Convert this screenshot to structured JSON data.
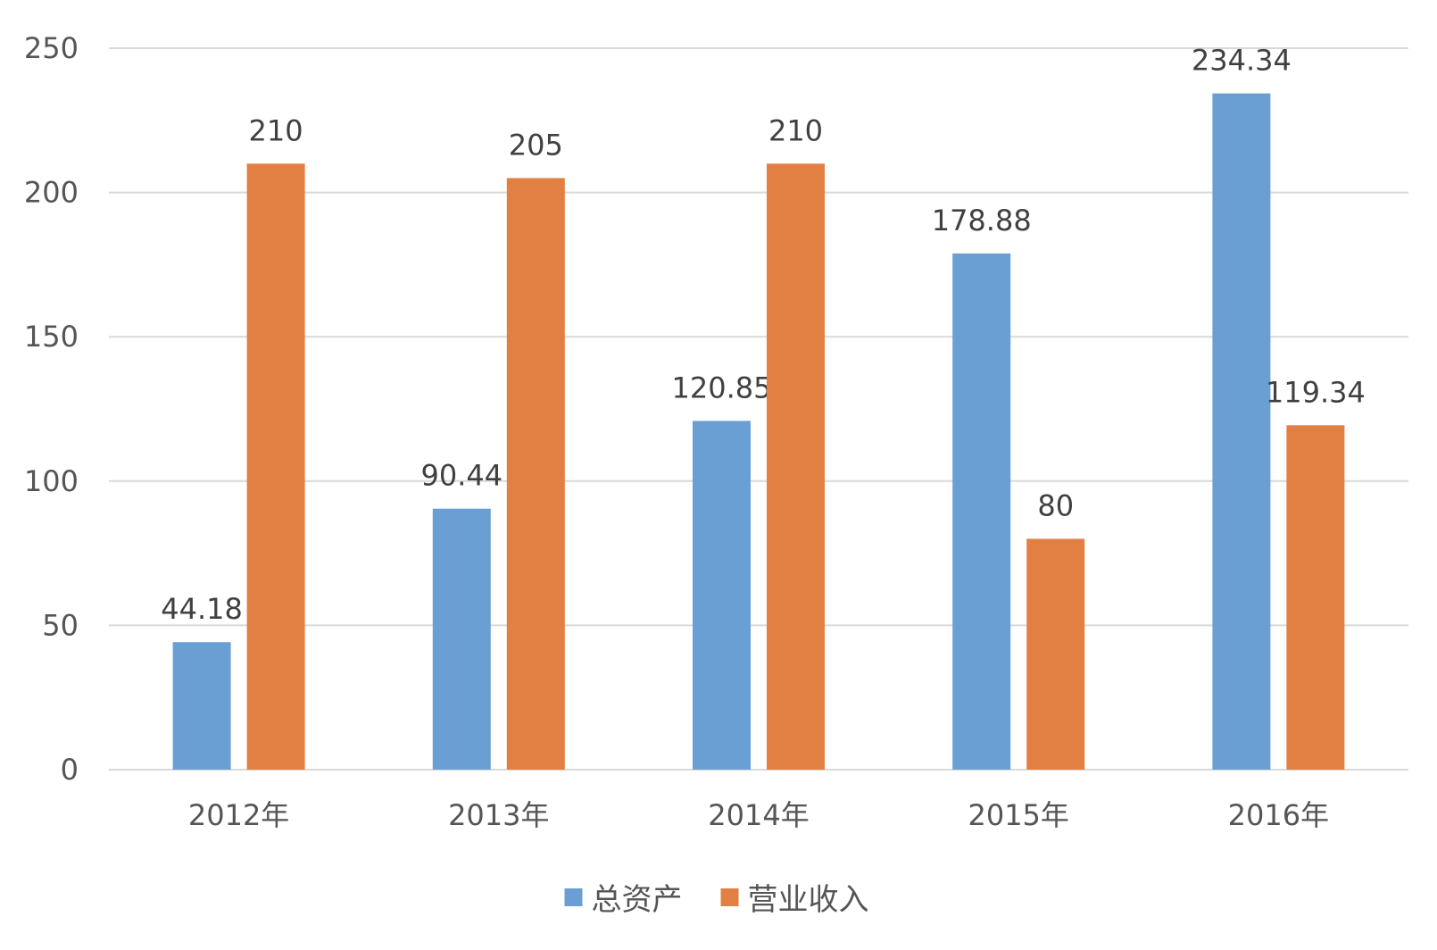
{
  "chart_data": {
    "type": "bar",
    "categories": [
      "2012年",
      "2013年",
      "2014年",
      "2015年",
      "2016年"
    ],
    "series": [
      {
        "name": "总资产",
        "color": "#6a9fd4",
        "values": [
          44.18,
          90.44,
          120.85,
          178.88,
          234.34
        ]
      },
      {
        "name": "营业收入",
        "color": "#e28043",
        "values": [
          210,
          205,
          210,
          80,
          119.34
        ]
      }
    ],
    "ylim": [
      0,
      250
    ],
    "yticks": [
      0,
      50,
      100,
      150,
      200,
      250
    ],
    "grid": true,
    "data_labels": true,
    "legend_position": "bottom"
  }
}
